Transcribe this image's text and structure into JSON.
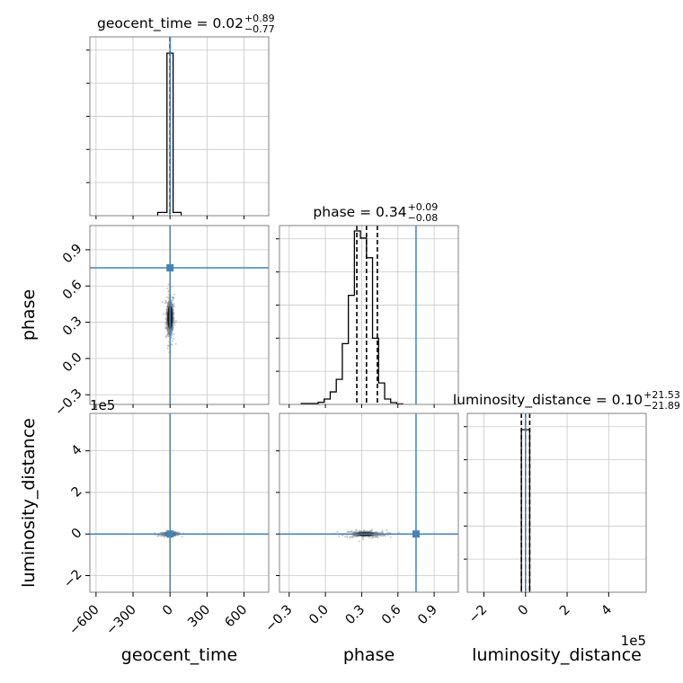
{
  "chart_data": {
    "type": "corner",
    "parameters": [
      "geocent_time",
      "phase",
      "luminosity_distance"
    ],
    "axis_labels": [
      "geocent_time",
      "phase",
      "luminosity_distance"
    ],
    "offset_texts": {
      "luminosity_distance_y": "1e5",
      "luminosity_distance_x": "1e5"
    },
    "truths": {
      "geocent_time": 0,
      "phase": 0.75,
      "luminosity_distance": 0
    },
    "truth_color": "#4682b4",
    "ranges": {
      "geocent_time": [
        -650,
        800
      ],
      "phase": [
        -0.38,
        1.1
      ],
      "luminosity_distance": [
        -2.8,
        5.8
      ]
    },
    "ticks": {
      "geocent_time": {
        "values": [
          -600,
          -300,
          0,
          300,
          600
        ],
        "labels": [
          "−600",
          "−300",
          "0",
          "300",
          "600"
        ]
      },
      "phase": {
        "values": [
          -0.3,
          0.0,
          0.3,
          0.6,
          0.9
        ],
        "labels": [
          "−0.3",
          "0.0",
          "0.3",
          "0.6",
          "0.9"
        ]
      },
      "luminosity_distance": {
        "values": [
          -2,
          0,
          2,
          4
        ],
        "labels": [
          "−2",
          "0",
          "2",
          "4"
        ]
      }
    },
    "marginals": [
      {
        "parameter": "geocent_time",
        "title": "geocent_time = ",
        "median": "0.02",
        "upper": "+0.89",
        "lower": "−0.77",
        "quantiles": [
          -0.75,
          0.02,
          0.91
        ],
        "bin_edges": [
          -100,
          -25,
          25,
          90
        ],
        "counts": [
          2,
          100,
          2
        ],
        "ymax": 110
      },
      {
        "parameter": "phase",
        "title": "phase = ",
        "median": "0.34",
        "upper": "+0.09",
        "lower": "−0.08",
        "quantiles": [
          0.26,
          0.34,
          0.43
        ],
        "bin_edges": [
          -0.2,
          -0.06,
          -0.01,
          0.04,
          0.09,
          0.14,
          0.19,
          0.24,
          0.29,
          0.34,
          0.39,
          0.44,
          0.49,
          0.54,
          0.59,
          0.64
        ],
        "counts": [
          0.5,
          1.2,
          3,
          7,
          14,
          34,
          61,
          97,
          93,
          82,
          37,
          12,
          3,
          1,
          0.3
        ],
        "ymax": 100
      },
      {
        "parameter": "luminosity_distance",
        "title": "luminosity_distance = ",
        "median": "0.10",
        "upper": "+21.53",
        "lower": "−21.89",
        "quantiles": [
          -0.2,
          0.0,
          0.2
        ],
        "bin_edges": [
          -0.2,
          0.2
        ],
        "counts": [
          100
        ],
        "ymax": 110
      }
    ],
    "pair_plots": [
      {
        "x": "geocent_time",
        "y": "phase",
        "center": [
          0,
          0.34
        ],
        "spread": [
          8,
          0.05
        ]
      },
      {
        "x": "geocent_time",
        "y": "luminosity_distance",
        "center": [
          0,
          0.0
        ],
        "spread": [
          20,
          0.02
        ]
      },
      {
        "x": "phase",
        "y": "luminosity_distance",
        "center": [
          0.33,
          0.0
        ],
        "spread": [
          0.04,
          0.04
        ]
      }
    ],
    "grid": true
  }
}
